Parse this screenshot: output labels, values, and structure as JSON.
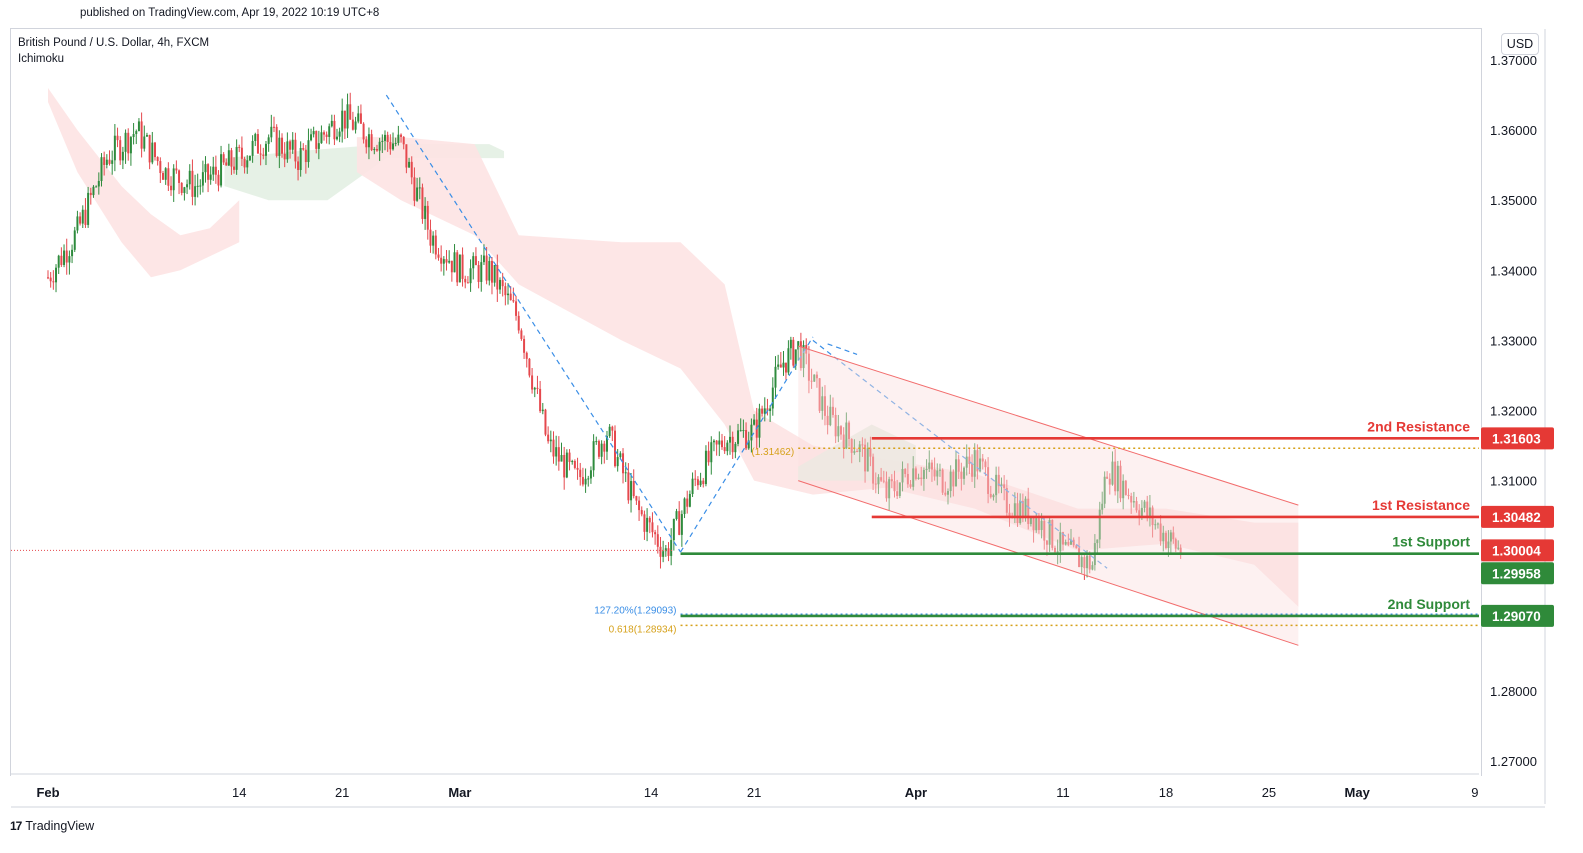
{
  "header": {
    "published": "published on TradingView.com, Apr 19, 2022 10:19 UTC+8",
    "symbol": "British Pound / U.S. Dollar, 4h, FXCM",
    "indicator": "Ichimoku",
    "currency": "USD",
    "brand": "TradingView"
  },
  "colors": {
    "bull": "#26a69a",
    "green_candle": "#2e8b3d",
    "bear": "#e5484d",
    "cloud_red": "#fde3e3",
    "cloud_green": "#e3efe3",
    "channel": "#f26d6d",
    "support": "#2f8a3a",
    "resistance": "#e53935",
    "fib_gold": "#d6a11a",
    "fib_blue": "#3a8ee6"
  },
  "chart_data": {
    "type": "candlestick",
    "y_axis": {
      "min": 1.265,
      "max": 1.372,
      "ticks": [
        "1.37000",
        "1.36000",
        "1.35000",
        "1.34000",
        "1.33000",
        "1.32000",
        "1.31000",
        "1.30000",
        "1.29000",
        "1.28000",
        "1.27000"
      ],
      "tick_values": [
        1.37,
        1.36,
        1.35,
        1.34,
        1.33,
        1.32,
        1.31,
        1.3,
        1.29,
        1.28,
        1.27
      ]
    },
    "x_axis": {
      "labels": [
        "Feb",
        "14",
        "21",
        "Mar",
        "14",
        "21",
        "Apr",
        "11",
        "18",
        "25",
        "May",
        "9"
      ],
      "dates": [
        "2022-02-01",
        "2022-02-14",
        "2022-02-21",
        "2022-03-01",
        "2022-03-14",
        "2022-03-21",
        "2022-04-01",
        "2022-04-11",
        "2022-04-18",
        "2022-04-25",
        "2022-05-01",
        "2022-05-09"
      ],
      "bold": [
        "Feb",
        "Mar",
        "Apr",
        "May"
      ]
    },
    "price_path": [
      [
        "2022-02-01",
        1.339
      ],
      [
        "2022-02-03",
        1.3455
      ],
      [
        "2022-02-05",
        1.356
      ],
      [
        "2022-02-07",
        1.36
      ],
      [
        "2022-02-09",
        1.354
      ],
      [
        "2022-02-11",
        1.352
      ],
      [
        "2022-02-14",
        1.356
      ],
      [
        "2022-02-16",
        1.359
      ],
      [
        "2022-02-18",
        1.356
      ],
      [
        "2022-02-21",
        1.362
      ],
      [
        "2022-02-23",
        1.359
      ],
      [
        "2022-02-25",
        1.358
      ],
      [
        "2022-02-27",
        1.345
      ],
      [
        "2022-03-01",
        1.34
      ],
      [
        "2022-03-03",
        1.34
      ],
      [
        "2022-03-05",
        1.333
      ],
      [
        "2022-03-07",
        1.315
      ],
      [
        "2022-03-09",
        1.31
      ],
      [
        "2022-03-11",
        1.317
      ],
      [
        "2022-03-13",
        1.306
      ],
      [
        "2022-03-15",
        1.2998
      ],
      [
        "2022-03-17",
        1.31
      ],
      [
        "2022-03-19",
        1.316
      ],
      [
        "2022-03-21",
        1.317
      ],
      [
        "2022-03-23",
        1.327
      ],
      [
        "2022-03-24",
        1.329
      ],
      [
        "2022-03-26",
        1.319
      ],
      [
        "2022-03-28",
        1.315
      ],
      [
        "2022-03-30",
        1.308
      ],
      [
        "2022-04-01",
        1.312
      ],
      [
        "2022-04-03",
        1.31
      ],
      [
        "2022-04-05",
        1.313
      ],
      [
        "2022-04-07",
        1.307
      ],
      [
        "2022-04-09",
        1.305
      ],
      [
        "2022-04-11",
        1.3
      ],
      [
        "2022-04-13",
        1.298
      ],
      [
        "2022-04-14",
        1.312
      ],
      [
        "2022-04-16",
        1.307
      ],
      [
        "2022-04-18",
        1.302
      ],
      [
        "2022-04-19",
        1.3
      ]
    ],
    "channel": {
      "upper": [
        [
          "2022-03-24",
          1.3292
        ],
        [
          "2022-04-27",
          1.3065
        ]
      ],
      "lower": [
        [
          "2022-03-24",
          1.31
        ],
        [
          "2022-04-27",
          1.2865
        ]
      ]
    },
    "fib_lines": [
      {
        "label": "127.20%(1.29093)",
        "value": 1.29093,
        "from": "2022-03-16",
        "to": "2022-04-30",
        "color": "blue"
      },
      {
        "label": "0.618(1.28934)",
        "value": 1.28934,
        "from": "2022-03-16",
        "to": "2022-04-30",
        "color": "gold"
      },
      {
        "label": "(1.31462)",
        "value": 1.31462,
        "from": "2022-03-24",
        "to": "2022-04-30",
        "color": "gold"
      }
    ],
    "levels": [
      {
        "name": "2nd Resistance",
        "value": 1.31603,
        "tag": "1.31603",
        "type": "resistance"
      },
      {
        "name": "1st Resistance",
        "value": 1.30482,
        "tag": "1.30482",
        "type": "resistance"
      },
      {
        "name": "1st Support",
        "value": 1.29958,
        "tag": "1.29958",
        "type": "support"
      },
      {
        "name": "2nd Support",
        "value": 1.2907,
        "tag": "1.29070",
        "type": "support"
      }
    ],
    "last_price": {
      "value": 1.30004,
      "tag": "1.30004"
    }
  }
}
